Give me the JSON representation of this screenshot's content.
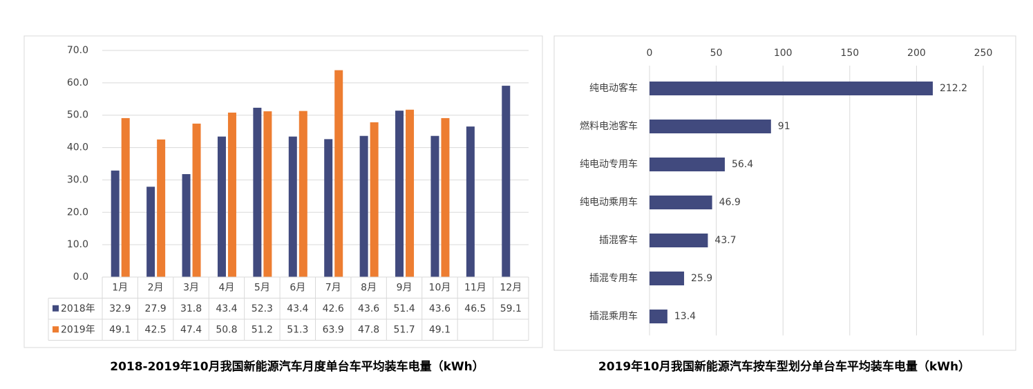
{
  "chart_data": [
    {
      "type": "bar",
      "title": "2018-2019年10月我国新能源汽车月度单台车平均装车电量（kWh）",
      "categories": [
        "1月",
        "2月",
        "3月",
        "4月",
        "5月",
        "6月",
        "7月",
        "8月",
        "9月",
        "10月",
        "11月",
        "12月"
      ],
      "series": [
        {
          "name": "2018年",
          "color": "#414a7e",
          "values": [
            32.9,
            27.9,
            31.8,
            43.4,
            52.3,
            43.4,
            42.6,
            43.6,
            51.4,
            43.6,
            46.5,
            59.1
          ]
        },
        {
          "name": "2019年",
          "color": "#ed7d31",
          "values": [
            49.1,
            42.5,
            47.4,
            50.8,
            51.2,
            51.3,
            63.9,
            47.8,
            51.7,
            49.1,
            null,
            null
          ]
        }
      ],
      "ylim": [
        0,
        70
      ],
      "yticks": [
        {
          "value": 0,
          "label": "0.0"
        },
        {
          "value": 10,
          "label": "10.0"
        },
        {
          "value": 20,
          "label": "20.0"
        },
        {
          "value": 30,
          "label": "30.0"
        },
        {
          "value": 40,
          "label": "40.0"
        },
        {
          "value": 50,
          "label": "50.0"
        },
        {
          "value": 60,
          "label": "60.0"
        },
        {
          "value": 70,
          "label": "70.0"
        }
      ],
      "grid": true,
      "data_table": true
    },
    {
      "type": "barh",
      "title": "2019年10月我国新能源汽车按车型划分单台车平均装车电量（kWh）",
      "categories": [
        "纯电动客车",
        "燃料电池客车",
        "纯电动专用车",
        "纯电动乘用车",
        "插混客车",
        "插混专用车",
        "插混乘用车"
      ],
      "values": [
        212.2,
        91,
        56.4,
        46.9,
        43.7,
        25.9,
        13.4
      ],
      "color": "#414a7e",
      "xlim": [
        0,
        250
      ],
      "xticks": [
        0,
        50,
        100,
        150,
        200,
        250
      ],
      "grid": true
    }
  ]
}
